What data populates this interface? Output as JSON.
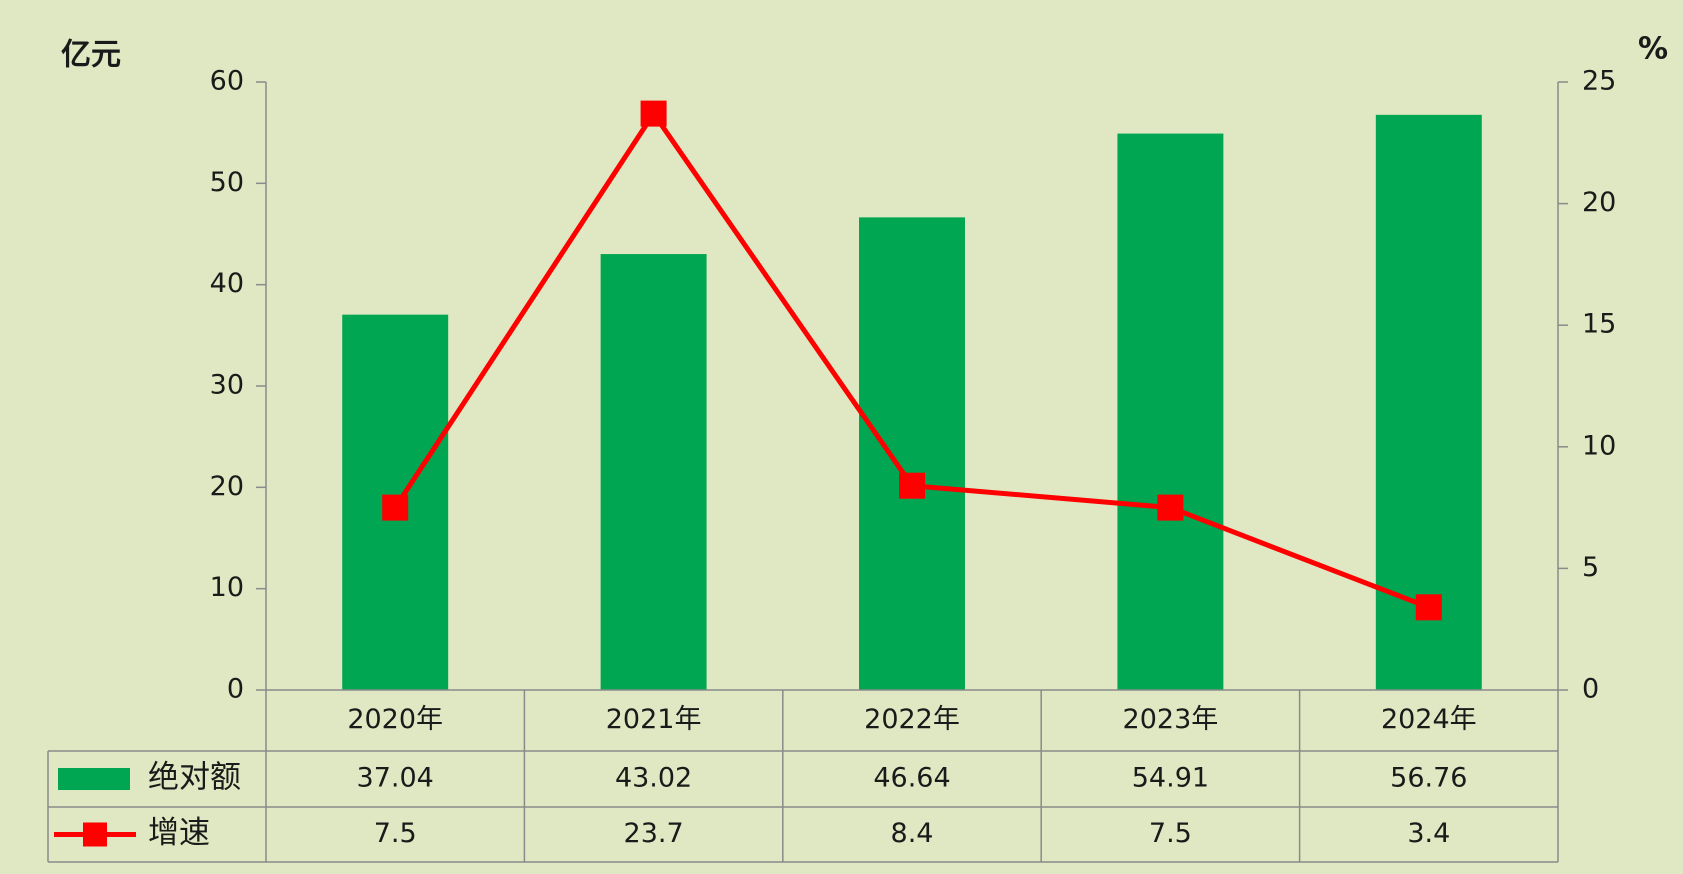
{
  "chart_data": {
    "type": "bar",
    "y_label": "亿元",
    "y2_label": "%",
    "categories": [
      "2020年",
      "2021年",
      "2022年",
      "2023年",
      "2024年"
    ],
    "series": [
      {
        "name": "绝对额",
        "color": "#00a651",
        "values": [
          37.04,
          43.02,
          46.64,
          54.91,
          56.76
        ]
      },
      {
        "name": "增速",
        "color": "#ff0000",
        "type": "line",
        "axis": "y2",
        "values": [
          7.5,
          23.7,
          8.4,
          7.5,
          3.4
        ]
      }
    ],
    "ylim": [
      0,
      60
    ],
    "yticks": [
      0,
      10,
      20,
      30,
      40,
      50,
      60
    ],
    "y2lim": [
      0,
      25
    ],
    "y2ticks": [
      0,
      5,
      10,
      15,
      20,
      25
    ],
    "data_table": true
  }
}
